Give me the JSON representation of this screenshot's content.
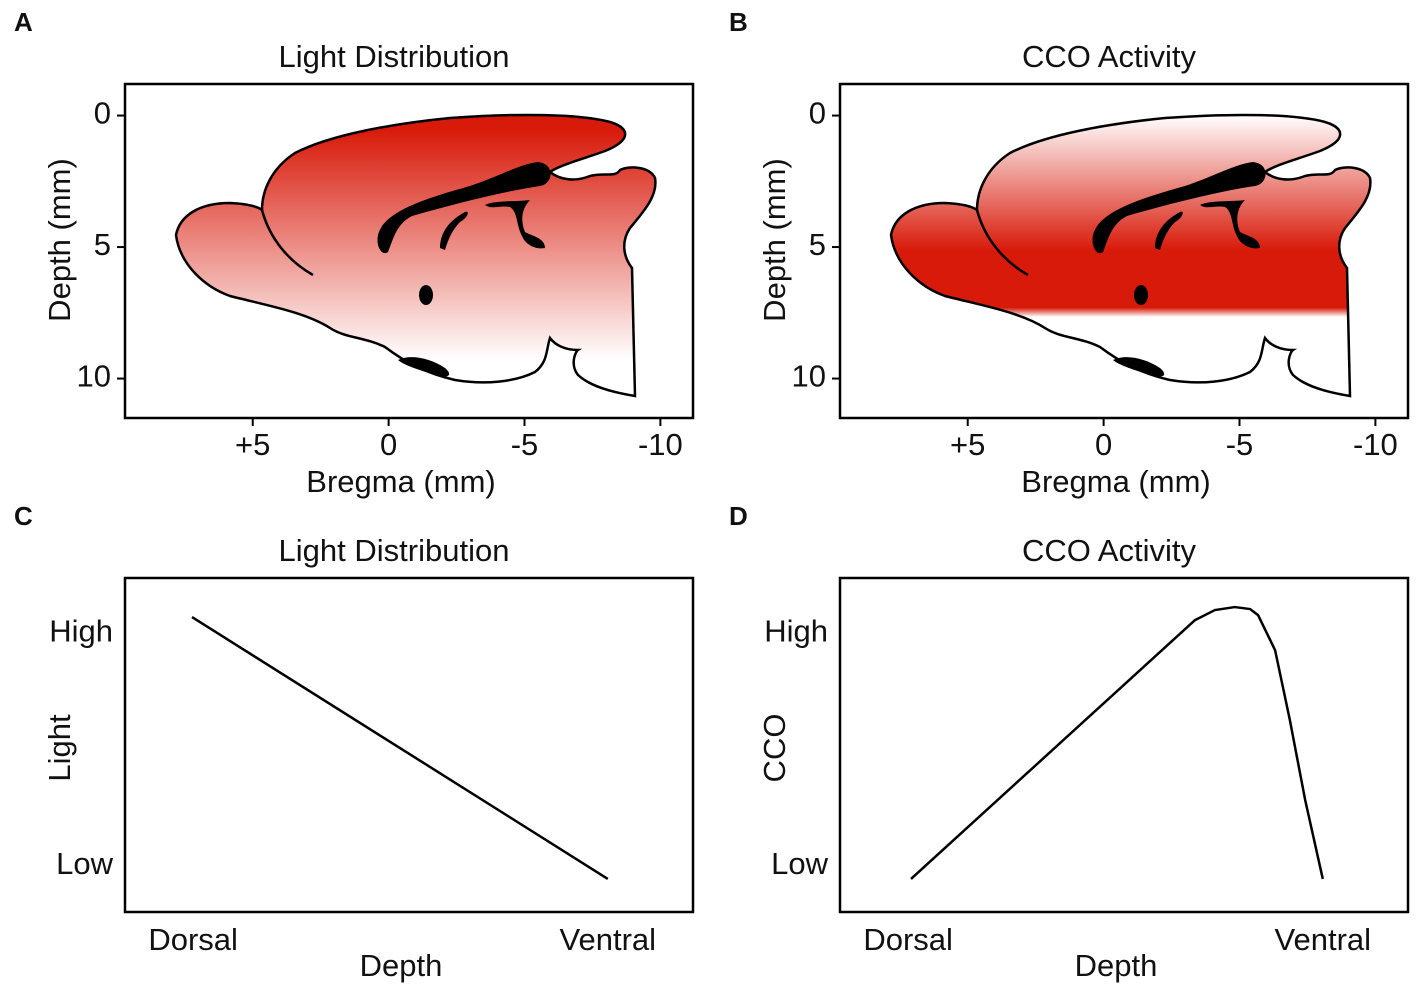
{
  "chart_data": [
    {
      "type": "image",
      "label": "A",
      "title": "Light Distribution",
      "xlabel": "Bregma (mm)",
      "ylabel": "Depth (mm)",
      "color": "#d81a0a",
      "xlim": [
        9.7,
        -11.2
      ],
      "xticks": [
        {
          "value": 5,
          "label": "+5"
        },
        0,
        -5,
        -10
      ],
      "ylim": [
        11.5,
        -1.2
      ],
      "yticks": [
        0,
        5,
        10
      ]
    },
    {
      "type": "image",
      "label": "B",
      "title": "CCO Activity",
      "xlabel": "Bregma (mm)",
      "ylabel": "Depth (mm)",
      "color": "#d81a0a",
      "xlim": [
        9.7,
        -11.2
      ],
      "xticks": [
        {
          "value": 5,
          "label": "+5"
        },
        0,
        -5,
        -10
      ],
      "ylim": [
        11.5,
        -1.2
      ],
      "yticks": [
        0,
        5,
        10
      ]
    },
    {
      "type": "line",
      "label": "C",
      "title": "Light Distribution",
      "xlabel": "Depth",
      "ylabel": "Light",
      "xlim": [
        0,
        100
      ],
      "xticks": [
        {
          "value": 12,
          "label": "Dorsal"
        },
        {
          "value": 85,
          "label": "Ventral"
        }
      ],
      "ylim": [
        0,
        100
      ],
      "yticks": [
        {
          "value": 13.8,
          "label": "Low"
        },
        {
          "value": 83.5,
          "label": "High"
        }
      ],
      "series": [
        {
          "color": "#000000",
          "x": [
            11.8,
            85
          ],
          "values": [
            88.3,
            9.9
          ]
        }
      ]
    },
    {
      "type": "line",
      "label": "D",
      "title": "CCO Activity",
      "xlabel": "Depth",
      "ylabel": "CCO",
      "xlim": [
        0,
        100
      ],
      "xticks": [
        {
          "value": 12,
          "label": "Dorsal"
        },
        {
          "value": 85,
          "label": "Ventral"
        }
      ],
      "ylim": [
        0,
        100
      ],
      "yticks": [
        {
          "value": 13.8,
          "label": "Low"
        },
        {
          "value": 83.5,
          "label": "High"
        }
      ],
      "series": [
        {
          "color": "#000000",
          "x": [
            12.5,
            62.5,
            66,
            69.5,
            72.2,
            73.6,
            76.6,
            79.2,
            81.9,
            85
          ],
          "values": [
            9.9,
            87.4,
            90.4,
            91.3,
            90.7,
            88.9,
            78.4,
            57.5,
            33.5,
            9.9
          ]
        }
      ]
    }
  ]
}
